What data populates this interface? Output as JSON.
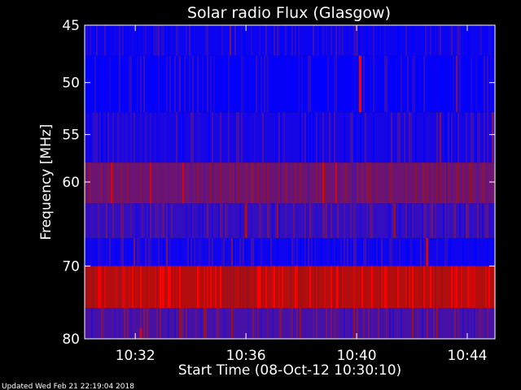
{
  "chart_data": {
    "type": "heatmap",
    "title": "Solar radio Flux (Glasgow)",
    "xlabel": "Start Time (08-Oct-12 10:30:10)",
    "ylabel": "Frequency [MHz]",
    "x_ticks": [
      "10:32",
      "10:36",
      "10:40",
      "10:44"
    ],
    "y_ticks": [
      "45",
      "50",
      "55",
      "60",
      "70",
      "80"
    ],
    "x_range_min": [
      30.17,
      45.0
    ],
    "y_range_mhz": [
      45,
      80
    ],
    "y_scale": "log",
    "colormap": [
      "#0000ff",
      "#3a10b8",
      "#7a1560",
      "#a01010",
      "#ff0000"
    ],
    "bands": [
      {
        "f_low": 45.0,
        "f_high": 47.6,
        "base_level": 0.05
      },
      {
        "f_low": 47.6,
        "f_high": 52.8,
        "base_level": 0.02
      },
      {
        "f_low": 52.8,
        "f_high": 57.9,
        "base_level": 0.1
      },
      {
        "f_low": 57.9,
        "f_high": 62.4,
        "base_level": 0.45
      },
      {
        "f_low": 62.4,
        "f_high": 66.5,
        "base_level": 0.22
      },
      {
        "f_low": 66.5,
        "f_high": 70.0,
        "base_level": 0.06
      },
      {
        "f_low": 70.0,
        "f_high": 75.6,
        "base_level": 0.8
      },
      {
        "f_low": 75.6,
        "f_high": 80.0,
        "base_level": 0.3
      }
    ],
    "bursts": [
      {
        "time_min": 40.13,
        "f_low": 47.6,
        "f_high": 52.8,
        "level": 1.0
      },
      {
        "time_min": 42.55,
        "f_low": 66.5,
        "f_high": 70.0,
        "level": 0.9
      },
      {
        "time_min": 36.0,
        "f_low": 62.4,
        "f_high": 66.5,
        "level": 0.8
      },
      {
        "time_min": 33.0,
        "f_low": 70.0,
        "f_high": 75.6,
        "level": 1.0
      },
      {
        "time_min": 36.5,
        "f_low": 70.0,
        "f_high": 75.6,
        "level": 1.0
      },
      {
        "time_min": 39.3,
        "f_low": 70.0,
        "f_high": 75.6,
        "level": 1.0
      },
      {
        "time_min": 44.2,
        "f_low": 70.0,
        "f_high": 75.6,
        "level": 0.9
      },
      {
        "time_min": 32.2,
        "f_low": 78.5,
        "f_high": 80.0,
        "level": 0.9
      }
    ]
  },
  "footer": {
    "updated": "Updated Wed Feb 21 22:19:04 2018"
  }
}
